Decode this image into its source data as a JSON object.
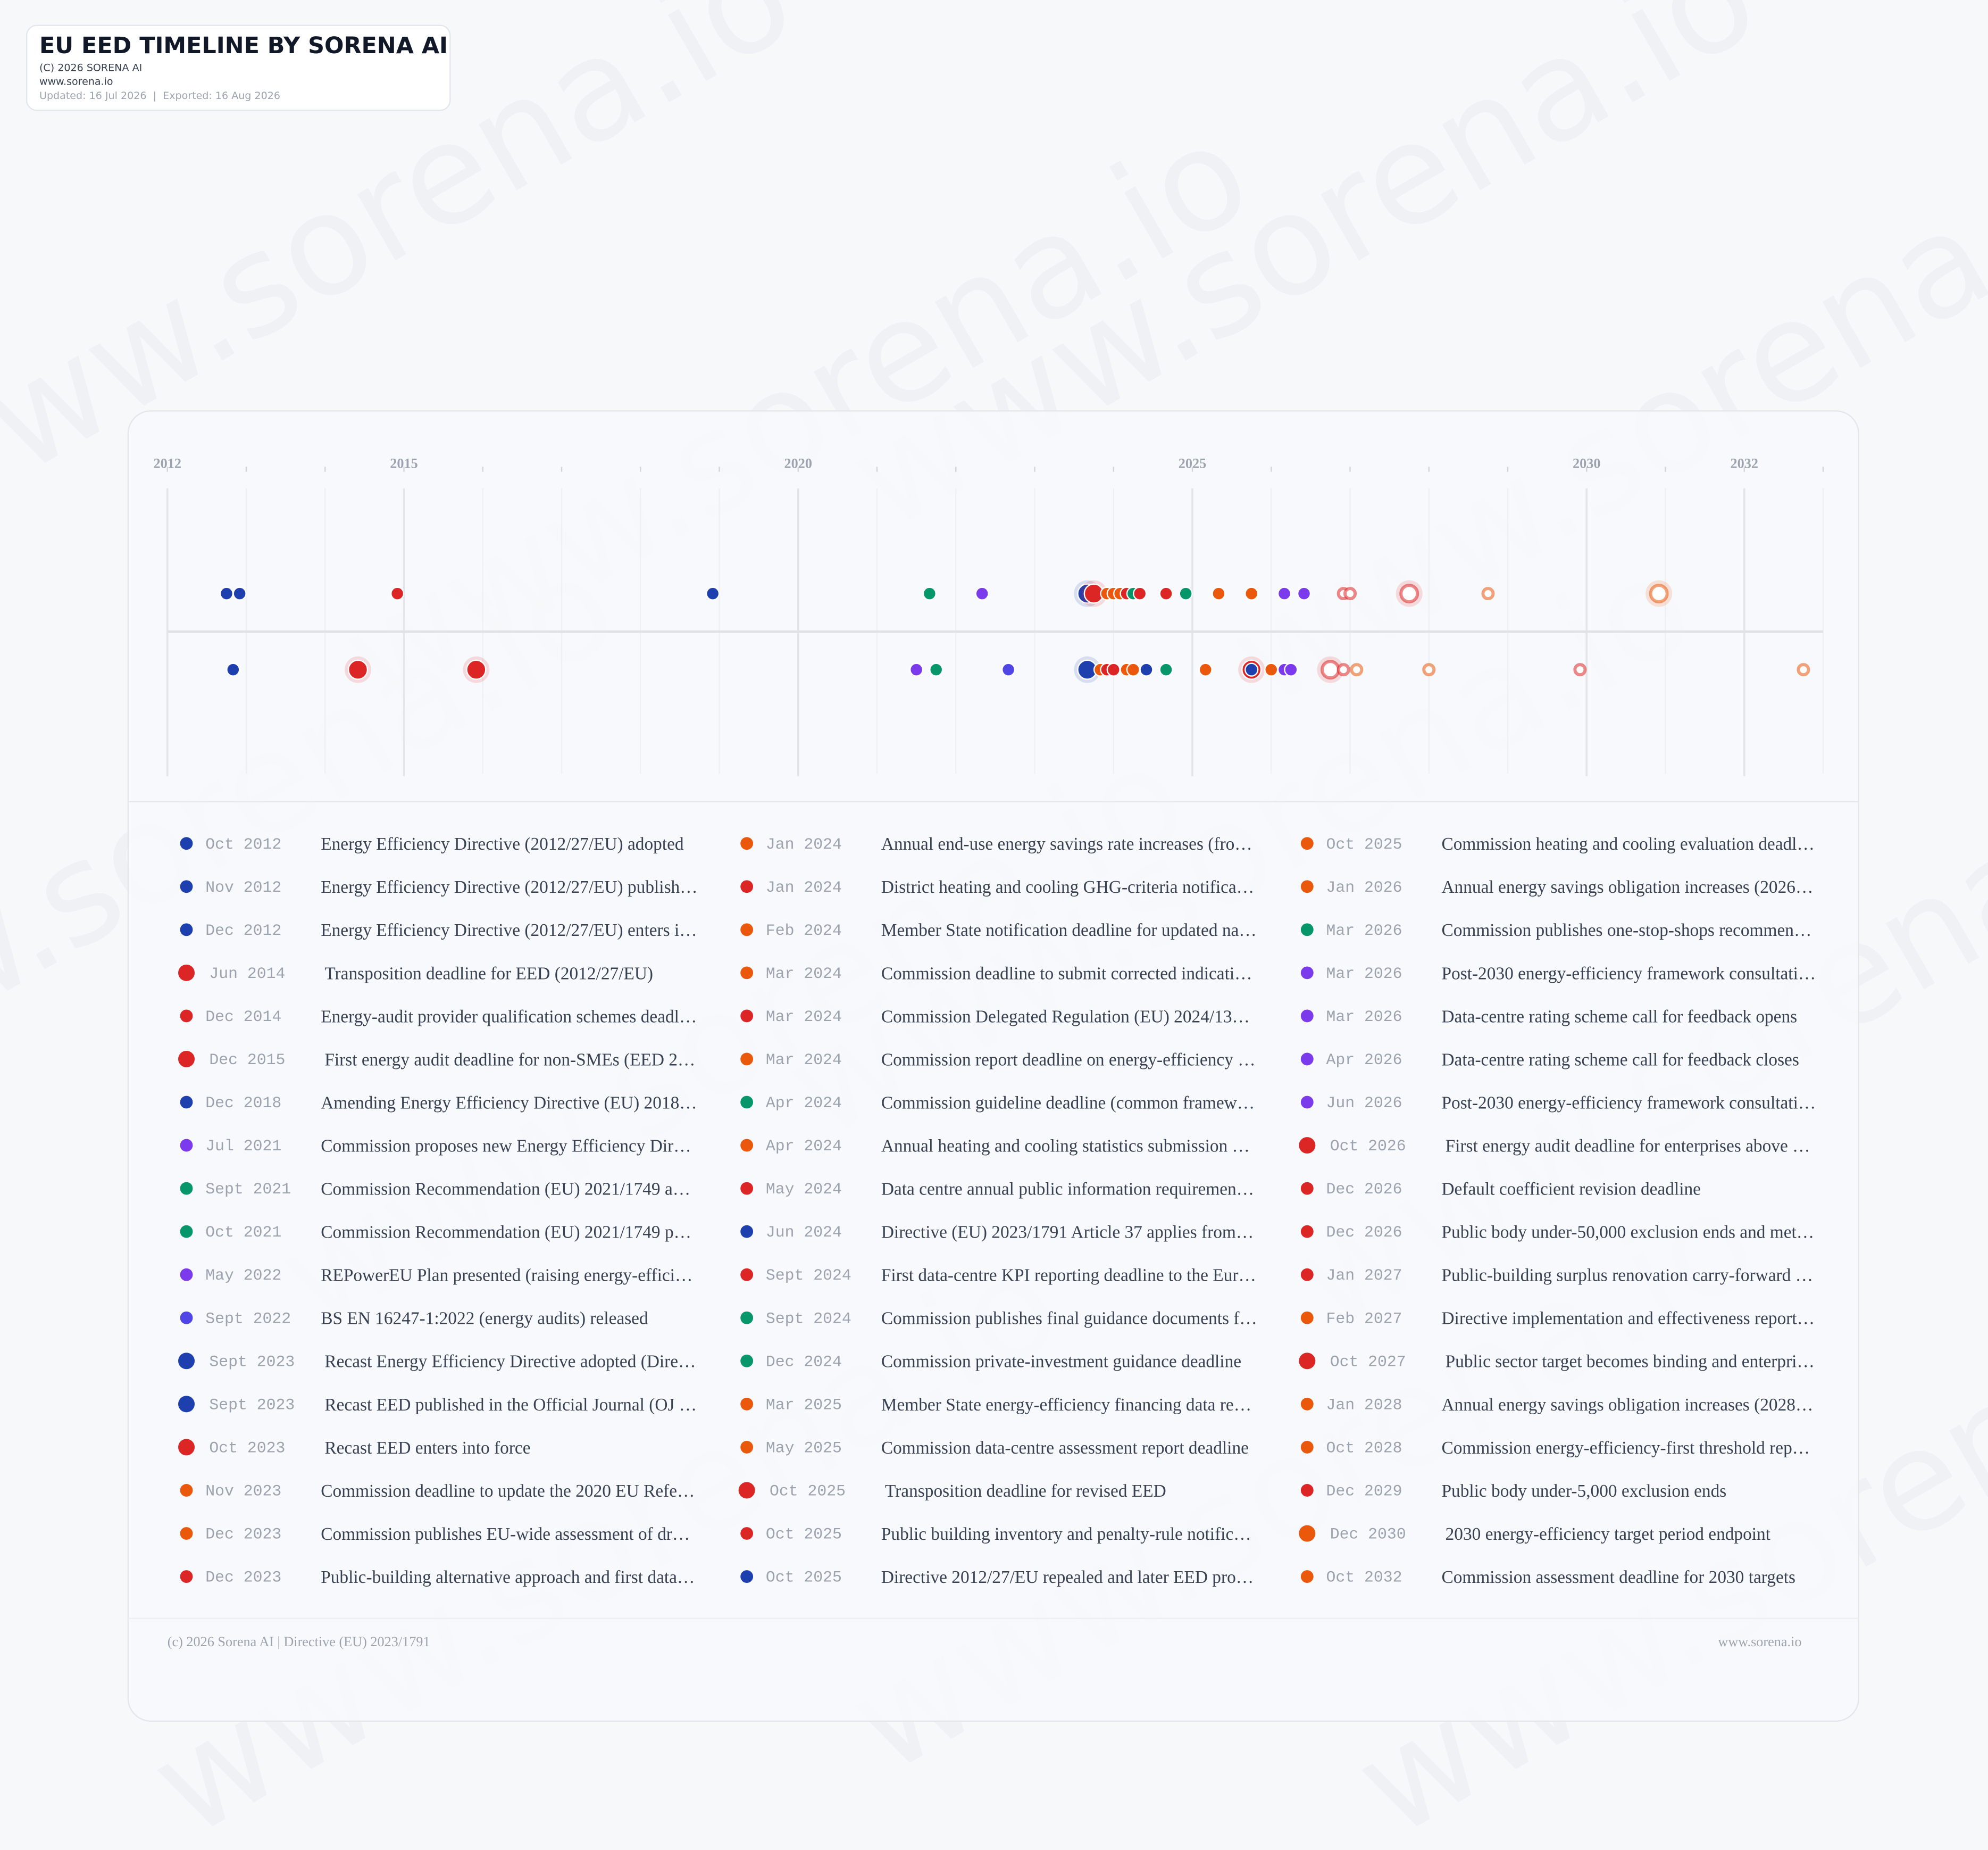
{
  "header": {
    "title": "EU EED TIMELINE BY SORENA AI",
    "copyright": "(C) 2026 SORENA AI",
    "website": "www.sorena.io",
    "dates": "Updated: 16 Jul 2026  |  Exported: 16 Aug 2026"
  },
  "watermark": "www.sorena.io",
  "timeline": {
    "xlim": [
      2012,
      2033
    ],
    "ticks": [
      2012,
      2015,
      2020,
      2025,
      2030,
      2032
    ]
  },
  "events": [
    {
      "date": "Oct 2012",
      "label": "Energy Efficiency Directive (2012/27/EU) adopted",
      "color": "#1e40af"
    },
    {
      "date": "Nov 2012",
      "label": "Energy Efficiency Directive (2012/27/EU) publish…",
      "color": "#1e40af"
    },
    {
      "date": "Dec 2012",
      "label": "Energy Efficiency Directive (2012/27/EU) enters i…",
      "color": "#1e40af"
    },
    {
      "date": "Jun 2014",
      "label": "Transposition deadline for EED (2012/27/EU)",
      "color": "#dc2626",
      "large": true
    },
    {
      "date": "Dec 2014",
      "label": "Energy-audit provider qualification schemes deadl…",
      "color": "#dc2626"
    },
    {
      "date": "Dec 2015",
      "label": "First energy audit deadline for non-SMEs (EED 2…",
      "color": "#dc2626",
      "large": true
    },
    {
      "date": "Dec 2018",
      "label": "Amending Energy Efficiency Directive (EU) 2018…",
      "color": "#1e40af"
    },
    {
      "date": "Jul 2021",
      "label": "Commission proposes new Energy Efficiency Dir…",
      "color": "#7c3aed"
    },
    {
      "date": "Sept 2021",
      "label": "Commission Recommendation (EU) 2021/1749 a…",
      "color": "#059669"
    },
    {
      "date": "Oct 2021",
      "label": "Commission Recommendation (EU) 2021/1749 p…",
      "color": "#059669"
    },
    {
      "date": "May 2022",
      "label": "REPowerEU Plan presented (raising energy-effici…",
      "color": "#7c3aed"
    },
    {
      "date": "Sept 2022",
      "label": "BS EN 16247-1:2022 (energy audits) released",
      "color": "#4f46e5"
    },
    {
      "date": "Sept 2023",
      "label": "Recast Energy Efficiency Directive adopted (Dire…",
      "color": "#1e40af",
      "large": true
    },
    {
      "date": "Sept 2023",
      "label": "Recast EED published in the Official Journal (OJ …",
      "color": "#1e40af",
      "large": true
    },
    {
      "date": "Oct 2023",
      "label": "Recast EED enters into force",
      "color": "#dc2626",
      "large": true
    },
    {
      "date": "Nov 2023",
      "label": "Commission deadline to update the 2020 EU Refe…",
      "color": "#ea580c"
    },
    {
      "date": "Dec 2023",
      "label": "Commission publishes EU-wide assessment of dr…",
      "color": "#ea580c"
    },
    {
      "date": "Dec 2023",
      "label": "Public-building alternative approach and first data…",
      "color": "#dc2626"
    },
    {
      "date": "Jan 2024",
      "label": "Annual end-use energy savings rate increases (fro…",
      "color": "#ea580c"
    },
    {
      "date": "Jan 2024",
      "label": "District heating and cooling GHG-criteria notifica…",
      "color": "#dc2626"
    },
    {
      "date": "Feb 2024",
      "label": "Member State notification deadline for updated na…",
      "color": "#ea580c"
    },
    {
      "date": "Mar 2024",
      "label": "Commission deadline to submit corrected indicati…",
      "color": "#ea580c"
    },
    {
      "date": "Mar 2024",
      "label": "Commission Delegated Regulation (EU) 2024/13…",
      "color": "#dc2626"
    },
    {
      "date": "Mar 2024",
      "label": "Commission report deadline on energy-efficiency …",
      "color": "#ea580c"
    },
    {
      "date": "Apr 2024",
      "label": "Commission guideline deadline (common framew…",
      "color": "#059669"
    },
    {
      "date": "Apr 2024",
      "label": "Annual heating and cooling statistics submission …",
      "color": "#ea580c"
    },
    {
      "date": "May 2024",
      "label": "Data centre annual public information requiremen…",
      "color": "#dc2626"
    },
    {
      "date": "Jun 2024",
      "label": "Directive (EU) 2023/1791 Article 37 applies from…",
      "color": "#1e40af"
    },
    {
      "date": "Sept 2024",
      "label": "First data-centre KPI reporting deadline to the Eur…",
      "color": "#dc2626"
    },
    {
      "date": "Sept 2024",
      "label": "Commission publishes final guidance documents f…",
      "color": "#059669"
    },
    {
      "date": "Dec 2024",
      "label": "Commission private-investment guidance deadline",
      "color": "#059669"
    },
    {
      "date": "Mar 2025",
      "label": "Member State energy-efficiency financing data re…",
      "color": "#ea580c"
    },
    {
      "date": "May 2025",
      "label": "Commission data-centre assessment report deadline",
      "color": "#ea580c"
    },
    {
      "date": "Oct 2025",
      "label": "Transposition deadline for revised EED",
      "color": "#dc2626",
      "large": true
    },
    {
      "date": "Oct 2025",
      "label": "Public building inventory and penalty-rule notific…",
      "color": "#dc2626"
    },
    {
      "date": "Oct 2025",
      "label": "Directive 2012/27/EU repealed and later EED pro…",
      "color": "#1e40af"
    },
    {
      "date": "Oct 2025",
      "label": "Commission heating and cooling evaluation deadl…",
      "color": "#ea580c"
    },
    {
      "date": "Jan 2026",
      "label": "Annual energy savings obligation increases (2026…",
      "color": "#ea580c"
    },
    {
      "date": "Mar 2026",
      "label": "Commission publishes one-stop-shops recommen…",
      "color": "#059669"
    },
    {
      "date": "Mar 2026",
      "label": "Post-2030 energy-efficiency framework consultati…",
      "color": "#7c3aed"
    },
    {
      "date": "Mar 2026",
      "label": "Data-centre rating scheme call for feedback opens",
      "color": "#7c3aed"
    },
    {
      "date": "Apr 2026",
      "label": "Data-centre rating scheme call for feedback closes",
      "color": "#7c3aed"
    },
    {
      "date": "Jun 2026",
      "label": "Post-2030 energy-efficiency framework consultati…",
      "color": "#7c3aed"
    },
    {
      "date": "Oct 2026",
      "label": "First energy audit deadline for enterprises above …",
      "color": "#dc2626",
      "large": true,
      "hollow": true
    },
    {
      "date": "Dec 2026",
      "label": "Default coefficient revision deadline",
      "color": "#dc2626",
      "hollow": true
    },
    {
      "date": "Dec 2026",
      "label": "Public body under-50,000 exclusion ends and met…",
      "color": "#dc2626",
      "hollow": true
    },
    {
      "date": "Jan 2027",
      "label": "Public-building surplus renovation carry-forward …",
      "color": "#dc2626",
      "hollow": true
    },
    {
      "date": "Feb 2027",
      "label": "Directive implementation and effectiveness report…",
      "color": "#ea580c",
      "hollow": true
    },
    {
      "date": "Oct 2027",
      "label": "Public sector target becomes binding and enterpri…",
      "color": "#dc2626",
      "large": true,
      "hollow": true
    },
    {
      "date": "Jan 2028",
      "label": "Annual energy savings obligation increases (2028…",
      "color": "#ea580c",
      "hollow": true
    },
    {
      "date": "Oct 2028",
      "label": "Commission energy-efficiency-first threshold rep…",
      "color": "#ea580c",
      "hollow": true
    },
    {
      "date": "Dec 2029",
      "label": "Public body under-5,000 exclusion ends",
      "color": "#dc2626",
      "hollow": true
    },
    {
      "date": "Dec 2030",
      "label": "2030 energy-efficiency target period endpoint",
      "color": "#ea580c",
      "large": true,
      "hollow": true
    },
    {
      "date": "Oct 2032",
      "label": "Commission assessment deadline for 2030 targets",
      "color": "#ea580c",
      "hollow": true
    }
  ],
  "footer": {
    "left": "(c) 2026 Sorena AI | Directive (EU) 2023/1791",
    "right": "www.sorena.io"
  }
}
